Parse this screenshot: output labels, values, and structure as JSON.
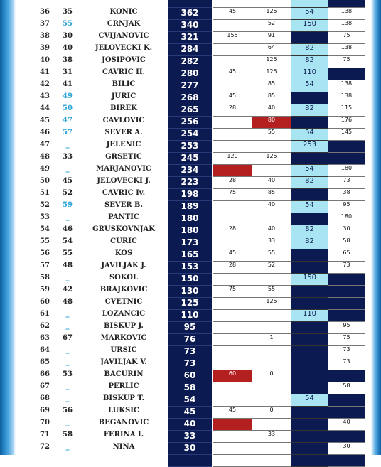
{
  "rows": [
    {
      "rank": "",
      "prev": "",
      "name": "",
      "pts": "",
      "c1": "",
      "c2": "",
      "c3": "",
      "c4": "",
      "c3_style": "lt",
      "c4_style": "dk"
    },
    {
      "rank": "36",
      "prev": "35",
      "name": "KONIĆ",
      "pts": "362",
      "c1": "45",
      "c2": "125",
      "c3": "54",
      "c4": "138",
      "c3_style": "lt"
    },
    {
      "rank": "37",
      "prev": "55",
      "prev_up": true,
      "name": "ĆRNJAK",
      "pts": "340",
      "c1": "",
      "c2": "52",
      "c3": "150",
      "c4": "138",
      "c3_style": "lt"
    },
    {
      "rank": "38",
      "prev": "30",
      "name": "CVIJANOVIĆ",
      "pts": "321",
      "c1": "155",
      "c2": "91",
      "c3": "",
      "c4": "75",
      "c3_style": "dk"
    },
    {
      "rank": "39",
      "prev": "40",
      "name": "JELOVEČKI K.",
      "pts": "284",
      "c1": "",
      "c2": "64",
      "c3": "82",
      "c4": "138",
      "c3_style": "lt"
    },
    {
      "rank": "40",
      "prev": "38",
      "name": "JOSIPOVIĆ",
      "pts": "282",
      "c1": "",
      "c2": "125",
      "c3": "82",
      "c4": "75",
      "c3_style": "lt"
    },
    {
      "rank": "41",
      "prev": "31",
      "name": "CAVRIĆ II.",
      "pts": "280",
      "c1": "45",
      "c2": "125",
      "c3": "110",
      "c4": "",
      "c3_style": "lt",
      "c4_style": "dk"
    },
    {
      "rank": "42",
      "prev": "41",
      "name": "BILIĆ",
      "pts": "277",
      "c1": "",
      "c2": "85",
      "c3": "54",
      "c4": "138",
      "c3_style": "lt"
    },
    {
      "rank": "43",
      "prev": "49",
      "prev_up": true,
      "name": "JURIĆ",
      "pts": "268",
      "c1": "45",
      "c2": "85",
      "c3": "",
      "c4": "138",
      "c3_style": "dk"
    },
    {
      "rank": "44",
      "prev": "50",
      "prev_up": true,
      "name": "BIREK",
      "pts": "265",
      "c1": "28",
      "c2": "40",
      "c3": "82",
      "c4": "115",
      "c3_style": "lt"
    },
    {
      "rank": "45",
      "prev": "47",
      "prev_up": true,
      "name": "ČAVLOVIĆ",
      "pts": "256",
      "c1": "",
      "c2": "80",
      "c2_red": true,
      "c3": "",
      "c4": "176",
      "c3_style": "dk"
    },
    {
      "rank": "46",
      "prev": "57",
      "prev_up": true,
      "name": "SEVER A.",
      "pts": "254",
      "c1": "",
      "c2": "55",
      "c3": "54",
      "c4": "145",
      "c3_style": "lt"
    },
    {
      "rank": "47",
      "prev": "_",
      "prev_up": true,
      "name": "JELENIĆ",
      "pts": "253",
      "c1": "",
      "c2": "",
      "c3": "253",
      "c4": "",
      "c3_style": "lt",
      "c4_style": "dk"
    },
    {
      "rank": "48",
      "prev": "33",
      "name": "GRŠETIĆ",
      "pts": "245",
      "c1": "120",
      "c2": "125",
      "c3": "",
      "c4": "",
      "c3_style": "dk",
      "c4_style": "dk"
    },
    {
      "rank": "49",
      "prev": "_",
      "prev_up": true,
      "name": "MARJANOVIĆ",
      "pts": "234",
      "c1": "",
      "c1_red": true,
      "c2": "",
      "c3": "54",
      "c4": "180",
      "c3_style": "lt"
    },
    {
      "rank": "50",
      "prev": "45",
      "name": "JELOVEČKI J.",
      "pts": "223",
      "c1": "28",
      "c2": "40",
      "c3": "82",
      "c4": "73",
      "c3_style": "lt"
    },
    {
      "rank": "51",
      "prev": "52",
      "name": "CAVRIĆ Iv.",
      "pts": "198",
      "c1": "75",
      "c2": "85",
      "c3": "",
      "c4": "38",
      "c3_style": "dk"
    },
    {
      "rank": "52",
      "prev": "59",
      "prev_up": true,
      "name": "SEVER B.",
      "pts": "189",
      "c1": "",
      "c2": "40",
      "c3": "54",
      "c4": "95",
      "c3_style": "lt"
    },
    {
      "rank": "53",
      "prev": "_",
      "prev_up": true,
      "name": "PANTIĆ",
      "pts": "180",
      "c1": "",
      "c2": "",
      "c3": "",
      "c4": "180",
      "c3_style": "dk"
    },
    {
      "rank": "54",
      "prev": "46",
      "name": "GRUŠKOVNJAK",
      "pts": "180",
      "c1": "28",
      "c2": "40",
      "c3": "82",
      "c4": "30",
      "c3_style": "lt"
    },
    {
      "rank": "55",
      "prev": "54",
      "name": "ĆURIĆ",
      "pts": "173",
      "c1": "",
      "c2": "33",
      "c3": "82",
      "c4": "58",
      "c3_style": "lt"
    },
    {
      "rank": "56",
      "prev": "55",
      "name": "KOS",
      "pts": "165",
      "c1": "45",
      "c2": "55",
      "c3": "",
      "c4": "65",
      "c3_style": "dk"
    },
    {
      "rank": "57",
      "prev": "48",
      "name": "JAVILJAK J.",
      "pts": "153",
      "c1": "28",
      "c2": "52",
      "c3": "",
      "c4": "73",
      "c3_style": "dk"
    },
    {
      "rank": "58",
      "prev": "_",
      "prev_up": true,
      "name": "SOKOL",
      "pts": "150",
      "c1": "",
      "c2": "",
      "c3": "150",
      "c4": "",
      "c3_style": "lt",
      "c4_style": "dk"
    },
    {
      "rank": "59",
      "prev": "42",
      "name": "BRAJKOVIĆ",
      "pts": "130",
      "c1": "75",
      "c2": "55",
      "c3": "",
      "c4": "",
      "c3_style": "dk",
      "c4_style": "dk"
    },
    {
      "rank": "60",
      "prev": "48",
      "name": "CVETNIĆ",
      "pts": "125",
      "c1": "",
      "c2": "125",
      "c3": "",
      "c4": "",
      "c3_style": "dk",
      "c4_style": "dk"
    },
    {
      "rank": "61",
      "prev": "_",
      "prev_up": true,
      "name": "LOZANČIĆ",
      "pts": "110",
      "c1": "",
      "c2": "",
      "c3": "110",
      "c4": "",
      "c3_style": "lt",
      "c4_style": "dk"
    },
    {
      "rank": "62",
      "prev": "_",
      "prev_up": true,
      "name": "BIŠKUP J.",
      "pts": "95",
      "c1": "",
      "c2": "",
      "c3": "",
      "c4": "95",
      "c3_style": "dk"
    },
    {
      "rank": "63",
      "prev": "67",
      "name": "MARKOVIĆ",
      "pts": "76",
      "c1": "",
      "c2": "1",
      "c3": "",
      "c4": "75",
      "c3_style": "dk"
    },
    {
      "rank": "64",
      "prev": "_",
      "prev_up": true,
      "name": "URŠIĆ",
      "pts": "73",
      "c1": "",
      "c2": "",
      "c3": "",
      "c4": "73",
      "c3_style": "dk"
    },
    {
      "rank": "65",
      "prev": "_",
      "prev_up": true,
      "name": "JAVILJAK V.",
      "pts": "73",
      "c1": "",
      "c2": "",
      "c3": "",
      "c4": "73",
      "c3_style": "dk"
    },
    {
      "rank": "66",
      "prev": "53",
      "name": "BAĆURIN",
      "pts": "60",
      "c1": "60",
      "c1_red": true,
      "c2": "0",
      "c3": "",
      "c4": "",
      "c3_style": "dk",
      "c4_style": "dk"
    },
    {
      "rank": "67",
      "prev": "_",
      "prev_up": true,
      "name": "PERLIĆ",
      "pts": "58",
      "c1": "",
      "c2": "",
      "c3": "",
      "c4": "58",
      "c3_style": "dk"
    },
    {
      "rank": "68",
      "prev": "_",
      "prev_up": true,
      "name": "BIŠKUP T.",
      "pts": "54",
      "c1": "",
      "c2": "",
      "c3": "54",
      "c4": "",
      "c3_style": "lt",
      "c4_style": "dk"
    },
    {
      "rank": "69",
      "prev": "56",
      "name": "LUKŠIĆ",
      "pts": "45",
      "c1": "45",
      "c2": "0",
      "c3": "",
      "c4": "",
      "c3_style": "dk",
      "c4_style": "dk"
    },
    {
      "rank": "70",
      "prev": "_",
      "prev_up": true,
      "name": "BEGANOVIĆ",
      "pts": "40",
      "c1": "",
      "c1_red": true,
      "c2": "",
      "c3": "",
      "c4": "40",
      "c3_style": "dk"
    },
    {
      "rank": "71",
      "prev": "58",
      "name": "FERINA I.",
      "pts": "33",
      "c1": "",
      "c2": "33",
      "c3": "",
      "c4": "",
      "c3_style": "dk",
      "c4_style": "dk"
    },
    {
      "rank": "72",
      "prev": "_",
      "prev_up": true,
      "name": "NINA",
      "pts": "30",
      "c1": "",
      "c2": "",
      "c3": "",
      "c4": "30",
      "c3_style": "dk"
    },
    {
      "rank": "",
      "prev": "",
      "name": "",
      "pts": "",
      "c1": "",
      "c2": "",
      "c3": "",
      "c4": "",
      "c3_style": "dk",
      "c4_style": "dk"
    }
  ]
}
